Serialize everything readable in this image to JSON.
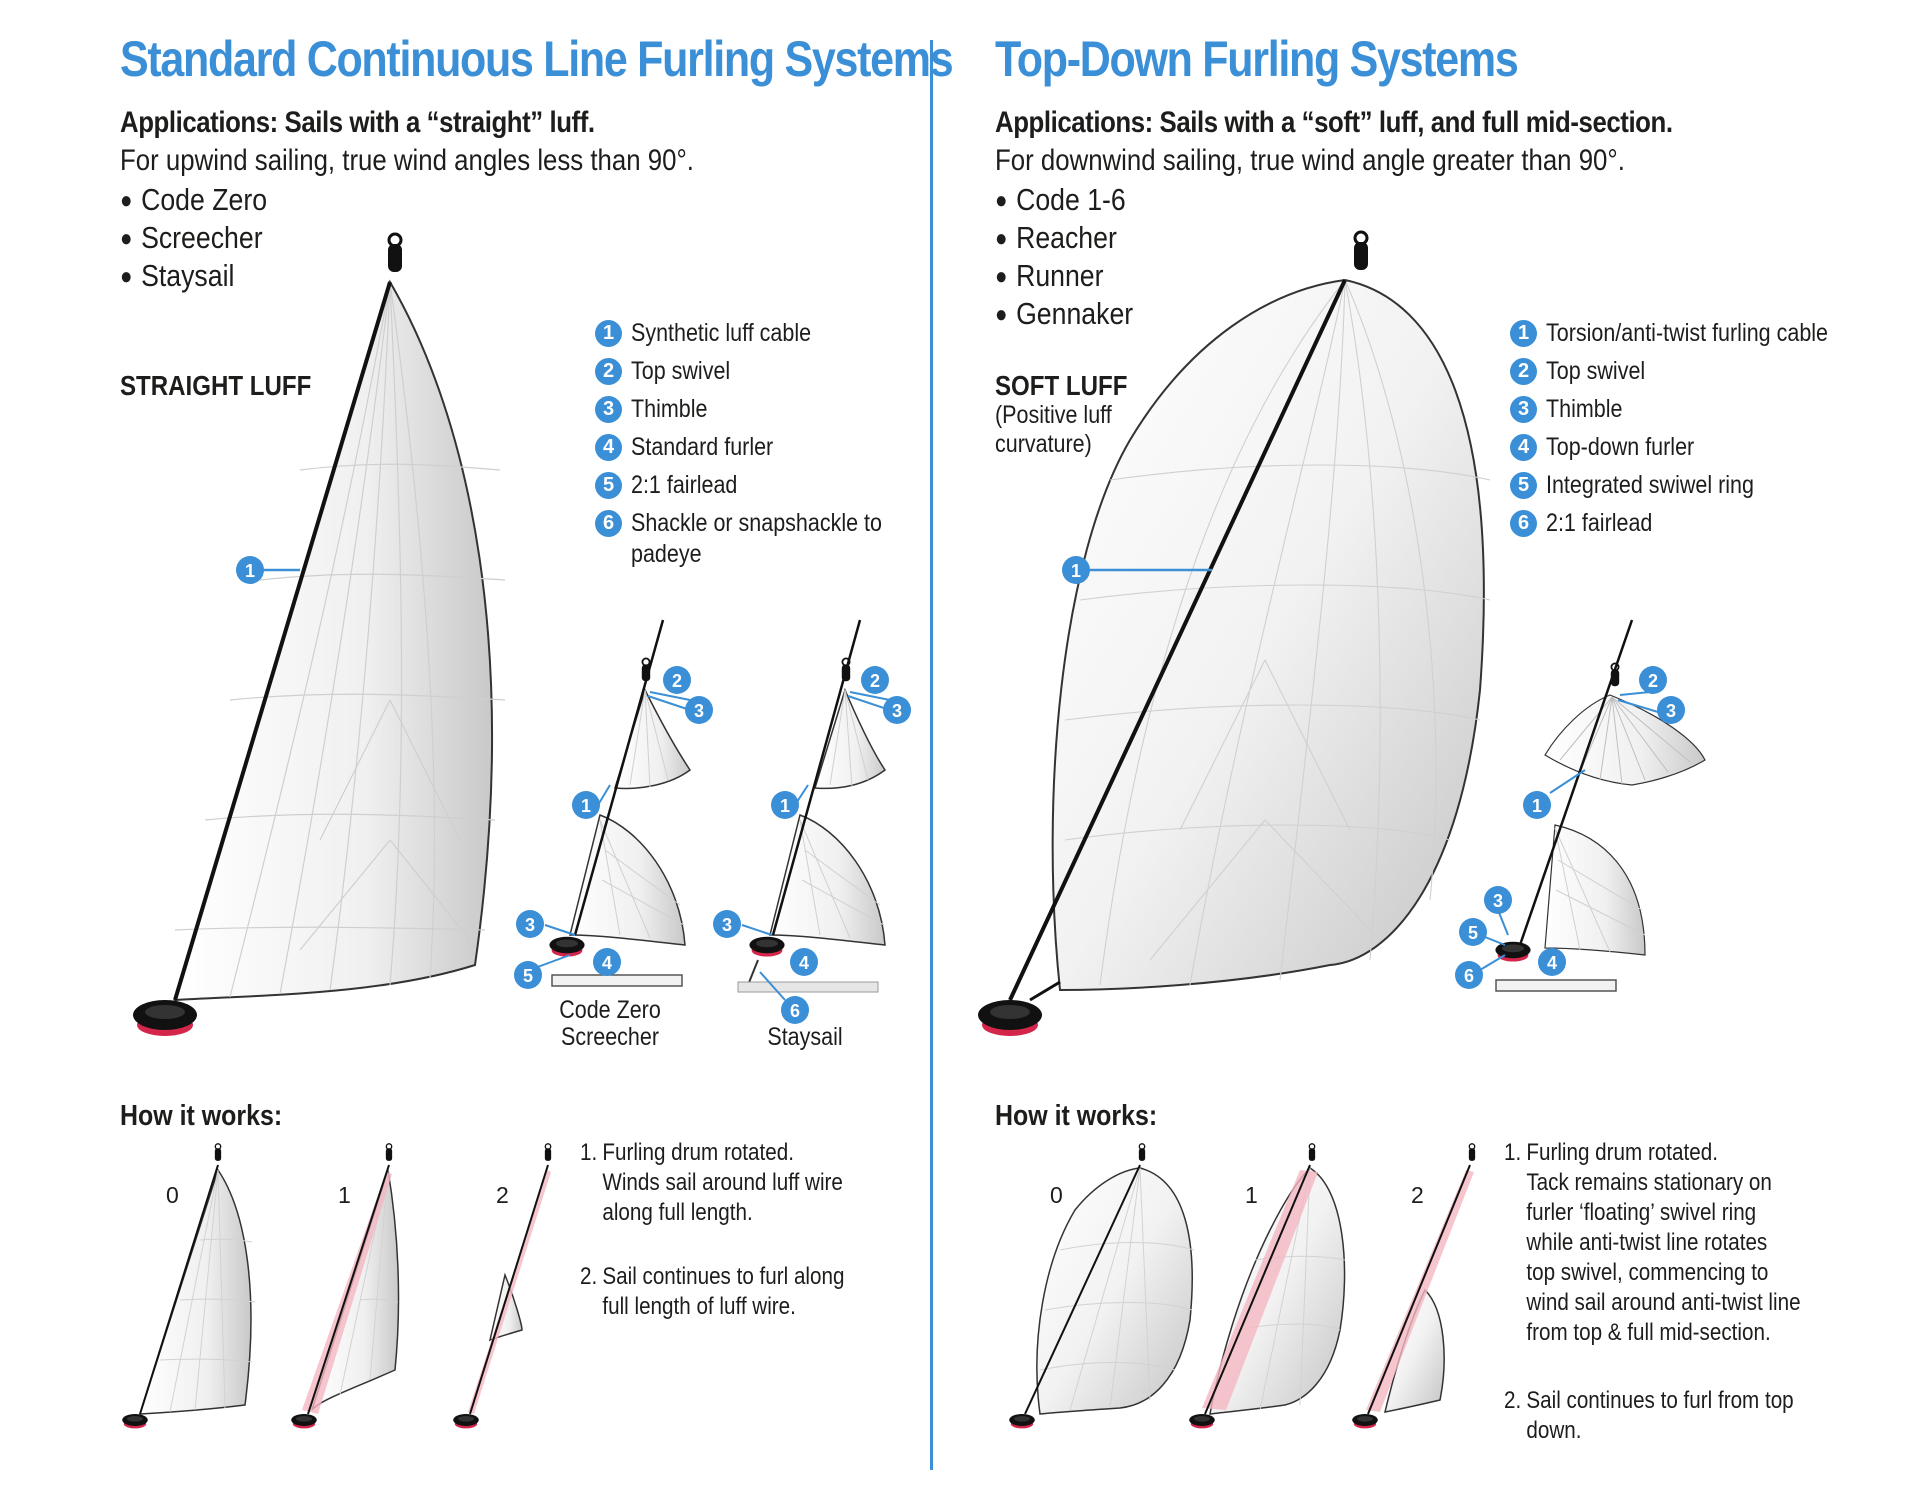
{
  "colors": {
    "accent": "#3a8fd6",
    "drum": "#111111",
    "drum_red": "#d3264a",
    "text": "#1d1d1b"
  },
  "left": {
    "title": "Standard Continuous Line Furling Systems",
    "applications": "Applications: Sails with a “straight” luff.",
    "subtitle": "For upwind sailing, true wind angles less than 90°.",
    "sail_types": [
      "Code Zero",
      "Screecher",
      "Staysail"
    ],
    "luff_heading": "STRAIGHT LUFF",
    "legend": [
      {
        "num": "1",
        "label": "Synthetic luff cable"
      },
      {
        "num": "2",
        "label": "Top swivel"
      },
      {
        "num": "3",
        "label": "Thimble"
      },
      {
        "num": "4",
        "label": "Standard furler"
      },
      {
        "num": "5",
        "label": "2:1 fairlead"
      },
      {
        "num": "6",
        "label": "Shackle or snapshackle to",
        "label2": "padeye"
      }
    ],
    "detail_captions": {
      "code_zero_line1": "Code Zero",
      "code_zero_line2": "Screecher",
      "staysail": "Staysail"
    },
    "how_heading": "How it works:",
    "stages": [
      "0",
      "1",
      "2"
    ],
    "steps": [
      {
        "num": "1.",
        "lines": [
          "Furling drum rotated.",
          "Winds sail around luff wire",
          "along full length."
        ]
      },
      {
        "num": "2.",
        "lines": [
          "Sail continues to furl along",
          "full length of luff wire."
        ]
      }
    ]
  },
  "right": {
    "title": "Top-Down Furling Systems",
    "applications": "Applications: Sails with a “soft” luff, and full mid-section.",
    "subtitle": "For downwind sailing, true wind angle greater than 90°.",
    "sail_types": [
      "Code 1-6",
      "Reacher",
      "Runner",
      "Gennaker"
    ],
    "luff_heading": "SOFT LUFF",
    "luff_sub_line1": "(Positive luff",
    "luff_sub_line2": "curvature)",
    "legend": [
      {
        "num": "1",
        "label": "Torsion/anti-twist furling cable"
      },
      {
        "num": "2",
        "label": "Top swivel"
      },
      {
        "num": "3",
        "label": "Thimble"
      },
      {
        "num": "4",
        "label": "Top-down furler"
      },
      {
        "num": "5",
        "label": "Integrated swiwel ring"
      },
      {
        "num": "6",
        "label": "2:1 fairlead"
      }
    ],
    "how_heading": "How it works:",
    "stages": [
      "0",
      "1",
      "2"
    ],
    "steps": [
      {
        "num": "1.",
        "lines": [
          "Furling drum rotated.",
          "Tack remains stationary on",
          "furler ‘floating’ swivel ring",
          "while anti-twist line rotates",
          "top swivel, commencing to",
          "wind sail around anti-twist line",
          "from top & full mid-section."
        ]
      },
      {
        "num": "2.",
        "lines": [
          "Sail continues to furl from top",
          "down."
        ]
      }
    ]
  },
  "callouts": {
    "n1": "1",
    "n2": "2",
    "n3": "3",
    "n4": "4",
    "n5": "5",
    "n6": "6"
  }
}
